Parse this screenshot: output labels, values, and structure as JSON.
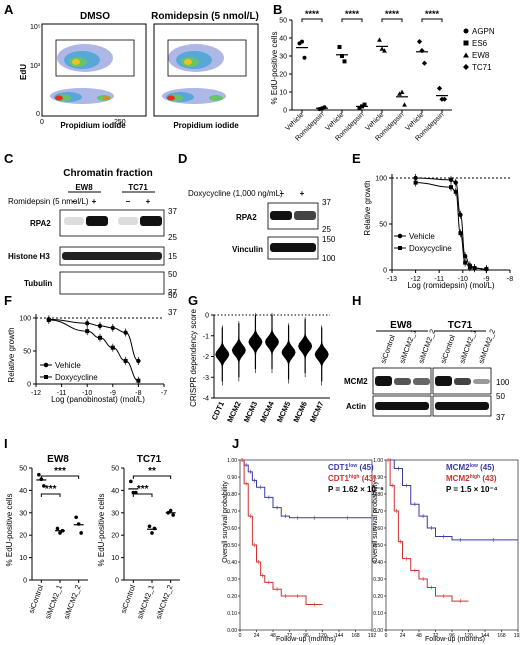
{
  "panels": {
    "A": {
      "label": "A",
      "left_title": "DMSO",
      "right_title": "Romidepsin (5 nmol/L)",
      "ylabel": "EdU",
      "xlabel": "Propidium iodide",
      "y_top": "10⁵",
      "y_mid": "10³",
      "y_bot": "0",
      "x_left": "0",
      "x_right": "250"
    },
    "B": {
      "label": "B",
      "ylabel": "% EdU-positive cells",
      "sig": "****",
      "legend": [
        {
          "name": "AGPN",
          "marker": "circle"
        },
        {
          "name": "ES6",
          "marker": "square"
        },
        {
          "name": "EW8",
          "marker": "triangle"
        },
        {
          "name": "TC71",
          "marker": "diamond"
        }
      ],
      "xticks": [
        "Vehicle",
        "Romidepsin",
        "Vehicle",
        "Romidepsin",
        "Vehicle",
        "Romidepsin",
        "Vehicle",
        "Romidepsin"
      ],
      "yticks": [
        "0",
        "10",
        "20",
        "30",
        "40",
        "50"
      ]
    },
    "C": {
      "label": "C",
      "title": "Chromatin fraction",
      "treatment": "Romidepsin (5 nmol/L)",
      "lines": [
        "EW8",
        "TC71"
      ],
      "signs": [
        "–",
        "+",
        "–",
        "+"
      ],
      "bands": [
        "RPA2",
        "Histone H3",
        "Tubulin"
      ],
      "mw": [
        "37",
        "25",
        "15",
        "50",
        "37"
      ]
    },
    "D": {
      "label": "D",
      "treatment": "Doxycycline (1,000 ng/mL)",
      "signs": [
        "–",
        "+"
      ],
      "bands": [
        "RPA2",
        "Vinculin"
      ],
      "mw": [
        "37",
        "25",
        "150",
        "100"
      ]
    },
    "E": {
      "label": "E",
      "ylabel": "Relative growth",
      "xlabel": "Log (romidepsin) (mol/L)",
      "legend": [
        "Vehicle",
        "Doxycycline"
      ]
    },
    "F": {
      "label": "F",
      "ylabel": "Relative growth",
      "xlabel": "Log (panobinostat) (mol/L)",
      "legend": [
        "Vehicle",
        "Doxycycline"
      ],
      "stray": [
        "50",
        "37"
      ]
    },
    "G": {
      "label": "G",
      "ylabel": "CRISPR dependency score",
      "genes": [
        "CDT1",
        "MCM2",
        "MCM3",
        "MCM4",
        "MCM5",
        "MCM6",
        "MCM7"
      ],
      "yticks": [
        "0",
        "-1",
        "-2",
        "-3",
        "-4"
      ]
    },
    "H": {
      "label": "H",
      "lines": [
        "EW8",
        "TC71"
      ],
      "lanes": [
        "siControl",
        "siMCM2_1",
        "siMCM2_2",
        "siControl",
        "siMCM2_1",
        "siMCM2_2"
      ],
      "bands": [
        "MCM2",
        "Actin"
      ],
      "mw": [
        "100",
        "50",
        "37"
      ]
    },
    "I": {
      "label": "I",
      "ylabel": "% EdU-positive cells",
      "left": {
        "title": "EW8",
        "groups": [
          "siControl",
          "siMCM2_1",
          "siMCM2_2"
        ],
        "sig": [
          "***",
          "***"
        ],
        "yticks": [
          "0",
          "10",
          "20",
          "30",
          "40",
          "50"
        ]
      },
      "right": {
        "title": "TC71",
        "groups": [
          "siControl",
          "siMCM2_1",
          "siMCM2_2"
        ],
        "sig": [
          "**",
          "***"
        ],
        "yticks": [
          "0",
          "10",
          "20",
          "30",
          "40",
          "50"
        ]
      }
    },
    "J": {
      "label": "J",
      "ylabel": "Overall survival probability",
      "xlabel": "Follow-up (months)",
      "xticks": [
        "0",
        "24",
        "48",
        "72",
        "96",
        "120",
        "144",
        "168",
        "192"
      ],
      "yticks": [
        "0.00",
        "0.10",
        "0.20",
        "0.30",
        "0.40",
        "0.50",
        "0.60",
        "0.70",
        "0.80",
        "0.90",
        "1.00"
      ],
      "left": {
        "low": "CDT1",
        "low_sup": "low",
        "low_n": "(45)",
        "high": "CDT1",
        "high_sup": "high",
        "high_n": "(43)",
        "p": "P = 1.62 × 10⁻⁶"
      },
      "right": {
        "low": "MCM2",
        "low_sup": "low",
        "low_n": "(45)",
        "high": "MCM2",
        "high_sup": "high",
        "high_n": "(43)",
        "p": "P = 1.5 × 10⁻⁴"
      },
      "colors": {
        "low": "#3a3aa8",
        "high": "#d03030"
      }
    }
  },
  "chart_data": [
    {
      "panel": "B",
      "type": "scatter",
      "ylabel": "% EdU-positive cells",
      "ylim": [
        0,
        50
      ],
      "categories": [
        "Vehicle",
        "Romidepsin",
        "Vehicle",
        "Romidepsin",
        "Vehicle",
        "Romidepsin",
        "Vehicle",
        "Romidepsin"
      ],
      "series": [
        {
          "name": "AGPN",
          "groups": [
            0,
            1
          ],
          "values": [
            [
              37,
              38,
              29
            ],
            [
              0.5,
              1,
              1.5
            ]
          ]
        },
        {
          "name": "ES6",
          "groups": [
            2,
            3
          ],
          "values": [
            [
              35,
              30,
              27
            ],
            [
              1,
              2,
              3
            ]
          ]
        },
        {
          "name": "EW8",
          "groups": [
            4,
            5
          ],
          "values": [
            [
              39,
              34,
              33
            ],
            [
              9,
              10,
              3
            ]
          ]
        },
        {
          "name": "TC71",
          "groups": [
            6,
            7
          ],
          "values": [
            [
              38,
              33,
              26
            ],
            [
              12,
              6,
              6
            ]
          ]
        }
      ]
    },
    {
      "panel": "E",
      "type": "line",
      "xlabel": "Log (romidepsin) (mol/L)",
      "ylabel": "Relative growth",
      "xlim": [
        -13,
        -8
      ],
      "ylim": [
        0,
        100
      ],
      "x": [
        -12,
        -10.5,
        -10.3,
        -10.1,
        -9.9,
        -9.7,
        -9.5,
        -9
      ],
      "series": [
        {
          "name": "Vehicle",
          "values": [
            100,
            98,
            95,
            60,
            15,
            5,
            2,
            1
          ]
        },
        {
          "name": "Doxycycline",
          "values": [
            95,
            90,
            85,
            40,
            8,
            3,
            2,
            1
          ]
        }
      ]
    },
    {
      "panel": "F",
      "type": "line",
      "xlabel": "Log (panobinostat) (mol/L)",
      "ylabel": "Relative growth",
      "xlim": [
        -12,
        -7
      ],
      "ylim": [
        0,
        100
      ],
      "x": [
        -11.5,
        -10,
        -9.5,
        -9,
        -8.5,
        -8
      ],
      "series": [
        {
          "name": "Vehicle",
          "values": [
            98,
            92,
            88,
            85,
            78,
            35
          ]
        },
        {
          "name": "Doxycycline",
          "values": [
            97,
            80,
            70,
            55,
            35,
            5
          ]
        }
      ]
    },
    {
      "panel": "G",
      "type": "scatter",
      "ylabel": "CRISPR dependency score",
      "ylim": [
        -4,
        0
      ],
      "categories": [
        "CDT1",
        "MCM2",
        "MCM3",
        "MCM4",
        "MCM5",
        "MCM6",
        "MCM7"
      ],
      "medians": [
        -1.9,
        -1.7,
        -1.3,
        -1.3,
        -1.8,
        -1.5,
        -1.9
      ]
    },
    {
      "panel": "I-EW8",
      "type": "scatter",
      "ylabel": "% EdU-positive cells",
      "ylim": [
        0,
        50
      ],
      "categories": [
        "siControl",
        "siMCM2_1",
        "siMCM2_2"
      ],
      "values": [
        [
          47,
          45,
          42
        ],
        [
          23,
          21,
          22
        ],
        [
          28,
          25,
          21
        ]
      ]
    },
    {
      "panel": "I-TC71",
      "type": "scatter",
      "ylabel": "% EdU-positive cells",
      "ylim": [
        0,
        50
      ],
      "categories": [
        "siControl",
        "siMCM2_1",
        "siMCM2_2"
      ],
      "values": [
        [
          44,
          39,
          39
        ],
        [
          24,
          21,
          23
        ],
        [
          30,
          31,
          29
        ]
      ]
    },
    {
      "panel": "J-left",
      "type": "line",
      "xlabel": "Follow-up (months)",
      "ylabel": "Overall survival probability",
      "xlim": [
        0,
        192
      ],
      "ylim": [
        0,
        1
      ],
      "series": [
        {
          "name": "CDT1 low (45)",
          "x": [
            0,
            6,
            12,
            18,
            24,
            36,
            48,
            60,
            72,
            96,
            120,
            192
          ],
          "values": [
            1,
            0.97,
            0.93,
            0.88,
            0.84,
            0.78,
            0.72,
            0.67,
            0.66,
            0.66,
            0.66,
            0.66
          ]
        },
        {
          "name": "CDT1 high (43)",
          "x": [
            0,
            6,
            12,
            18,
            24,
            30,
            36,
            48,
            60,
            72,
            96,
            120
          ],
          "values": [
            1,
            0.86,
            0.67,
            0.5,
            0.4,
            0.32,
            0.28,
            0.24,
            0.2,
            0.2,
            0.15,
            0.15
          ]
        }
      ]
    },
    {
      "panel": "J-right",
      "type": "line",
      "xlabel": "Follow-up (months)",
      "ylabel": "Overall survival probability",
      "xlim": [
        0,
        192
      ],
      "ylim": [
        0,
        1
      ],
      "series": [
        {
          "name": "MCM2 low (45)",
          "x": [
            0,
            12,
            24,
            36,
            48,
            60,
            72,
            96,
            120,
            192
          ],
          "values": [
            1,
            0.95,
            0.85,
            0.74,
            0.67,
            0.6,
            0.55,
            0.53,
            0.53,
            0.53
          ]
        },
        {
          "name": "MCM2 high (43)",
          "x": [
            0,
            6,
            12,
            18,
            24,
            36,
            48,
            60,
            72,
            96,
            120
          ],
          "values": [
            1,
            0.85,
            0.7,
            0.52,
            0.42,
            0.35,
            0.3,
            0.25,
            0.2,
            0.17,
            0.17
          ]
        }
      ]
    }
  ]
}
